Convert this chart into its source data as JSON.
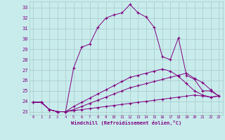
{
  "xlabel": "Windchill (Refroidissement éolien,°C)",
  "background_color": "#c8ecec",
  "grid_color": "#a8c8c8",
  "line_color": "#800080",
  "xlim": [
    -0.5,
    23.5
  ],
  "ylim": [
    22.7,
    33.6
  ],
  "yticks": [
    23,
    24,
    25,
    26,
    27,
    28,
    29,
    30,
    31,
    32,
    33
  ],
  "xticks": [
    0,
    1,
    2,
    3,
    4,
    5,
    6,
    7,
    8,
    9,
    10,
    11,
    12,
    13,
    14,
    15,
    16,
    17,
    18,
    19,
    20,
    21,
    22,
    23
  ],
  "series1_x": [
    0,
    1,
    2,
    3,
    4,
    5,
    6,
    7,
    8,
    9,
    10,
    11,
    12,
    13,
    14,
    15,
    16,
    17,
    18,
    19,
    20,
    21,
    22,
    23
  ],
  "series1_y": [
    23.9,
    23.9,
    23.2,
    23.0,
    23.0,
    27.2,
    29.2,
    29.5,
    31.1,
    32.0,
    32.3,
    32.5,
    33.3,
    32.5,
    32.1,
    31.1,
    28.3,
    28.0,
    30.1,
    26.5,
    26.1,
    25.0,
    25.0,
    24.5
  ],
  "series2_x": [
    0,
    1,
    2,
    3,
    4,
    5,
    6,
    7,
    8,
    9,
    10,
    11,
    12,
    13,
    14,
    15,
    16,
    17,
    18,
    19,
    20,
    21,
    22,
    23
  ],
  "series2_y": [
    23.9,
    23.9,
    23.2,
    23.0,
    23.0,
    23.1,
    23.2,
    23.3,
    23.4,
    23.5,
    23.6,
    23.7,
    23.8,
    23.9,
    24.0,
    24.1,
    24.2,
    24.3,
    24.4,
    24.5,
    24.6,
    24.5,
    24.4,
    24.5
  ],
  "series3_x": [
    0,
    1,
    2,
    3,
    4,
    5,
    6,
    7,
    8,
    9,
    10,
    11,
    12,
    13,
    14,
    15,
    16,
    17,
    18,
    19,
    20,
    21,
    22,
    23
  ],
  "series3_y": [
    23.9,
    23.9,
    23.2,
    23.0,
    23.0,
    23.2,
    23.5,
    23.8,
    24.1,
    24.4,
    24.7,
    25.0,
    25.3,
    25.5,
    25.7,
    25.9,
    26.1,
    26.3,
    26.5,
    26.7,
    26.2,
    25.8,
    25.1,
    24.5
  ],
  "series4_x": [
    0,
    1,
    2,
    3,
    4,
    5,
    6,
    7,
    8,
    9,
    10,
    11,
    12,
    13,
    14,
    15,
    16,
    17,
    18,
    19,
    20,
    21,
    22,
    23
  ],
  "series4_y": [
    23.9,
    23.9,
    23.2,
    23.0,
    23.0,
    23.5,
    23.9,
    24.3,
    24.7,
    25.1,
    25.5,
    25.9,
    26.3,
    26.5,
    26.7,
    26.9,
    27.1,
    26.9,
    26.4,
    25.7,
    25.0,
    24.6,
    24.4,
    24.5
  ]
}
